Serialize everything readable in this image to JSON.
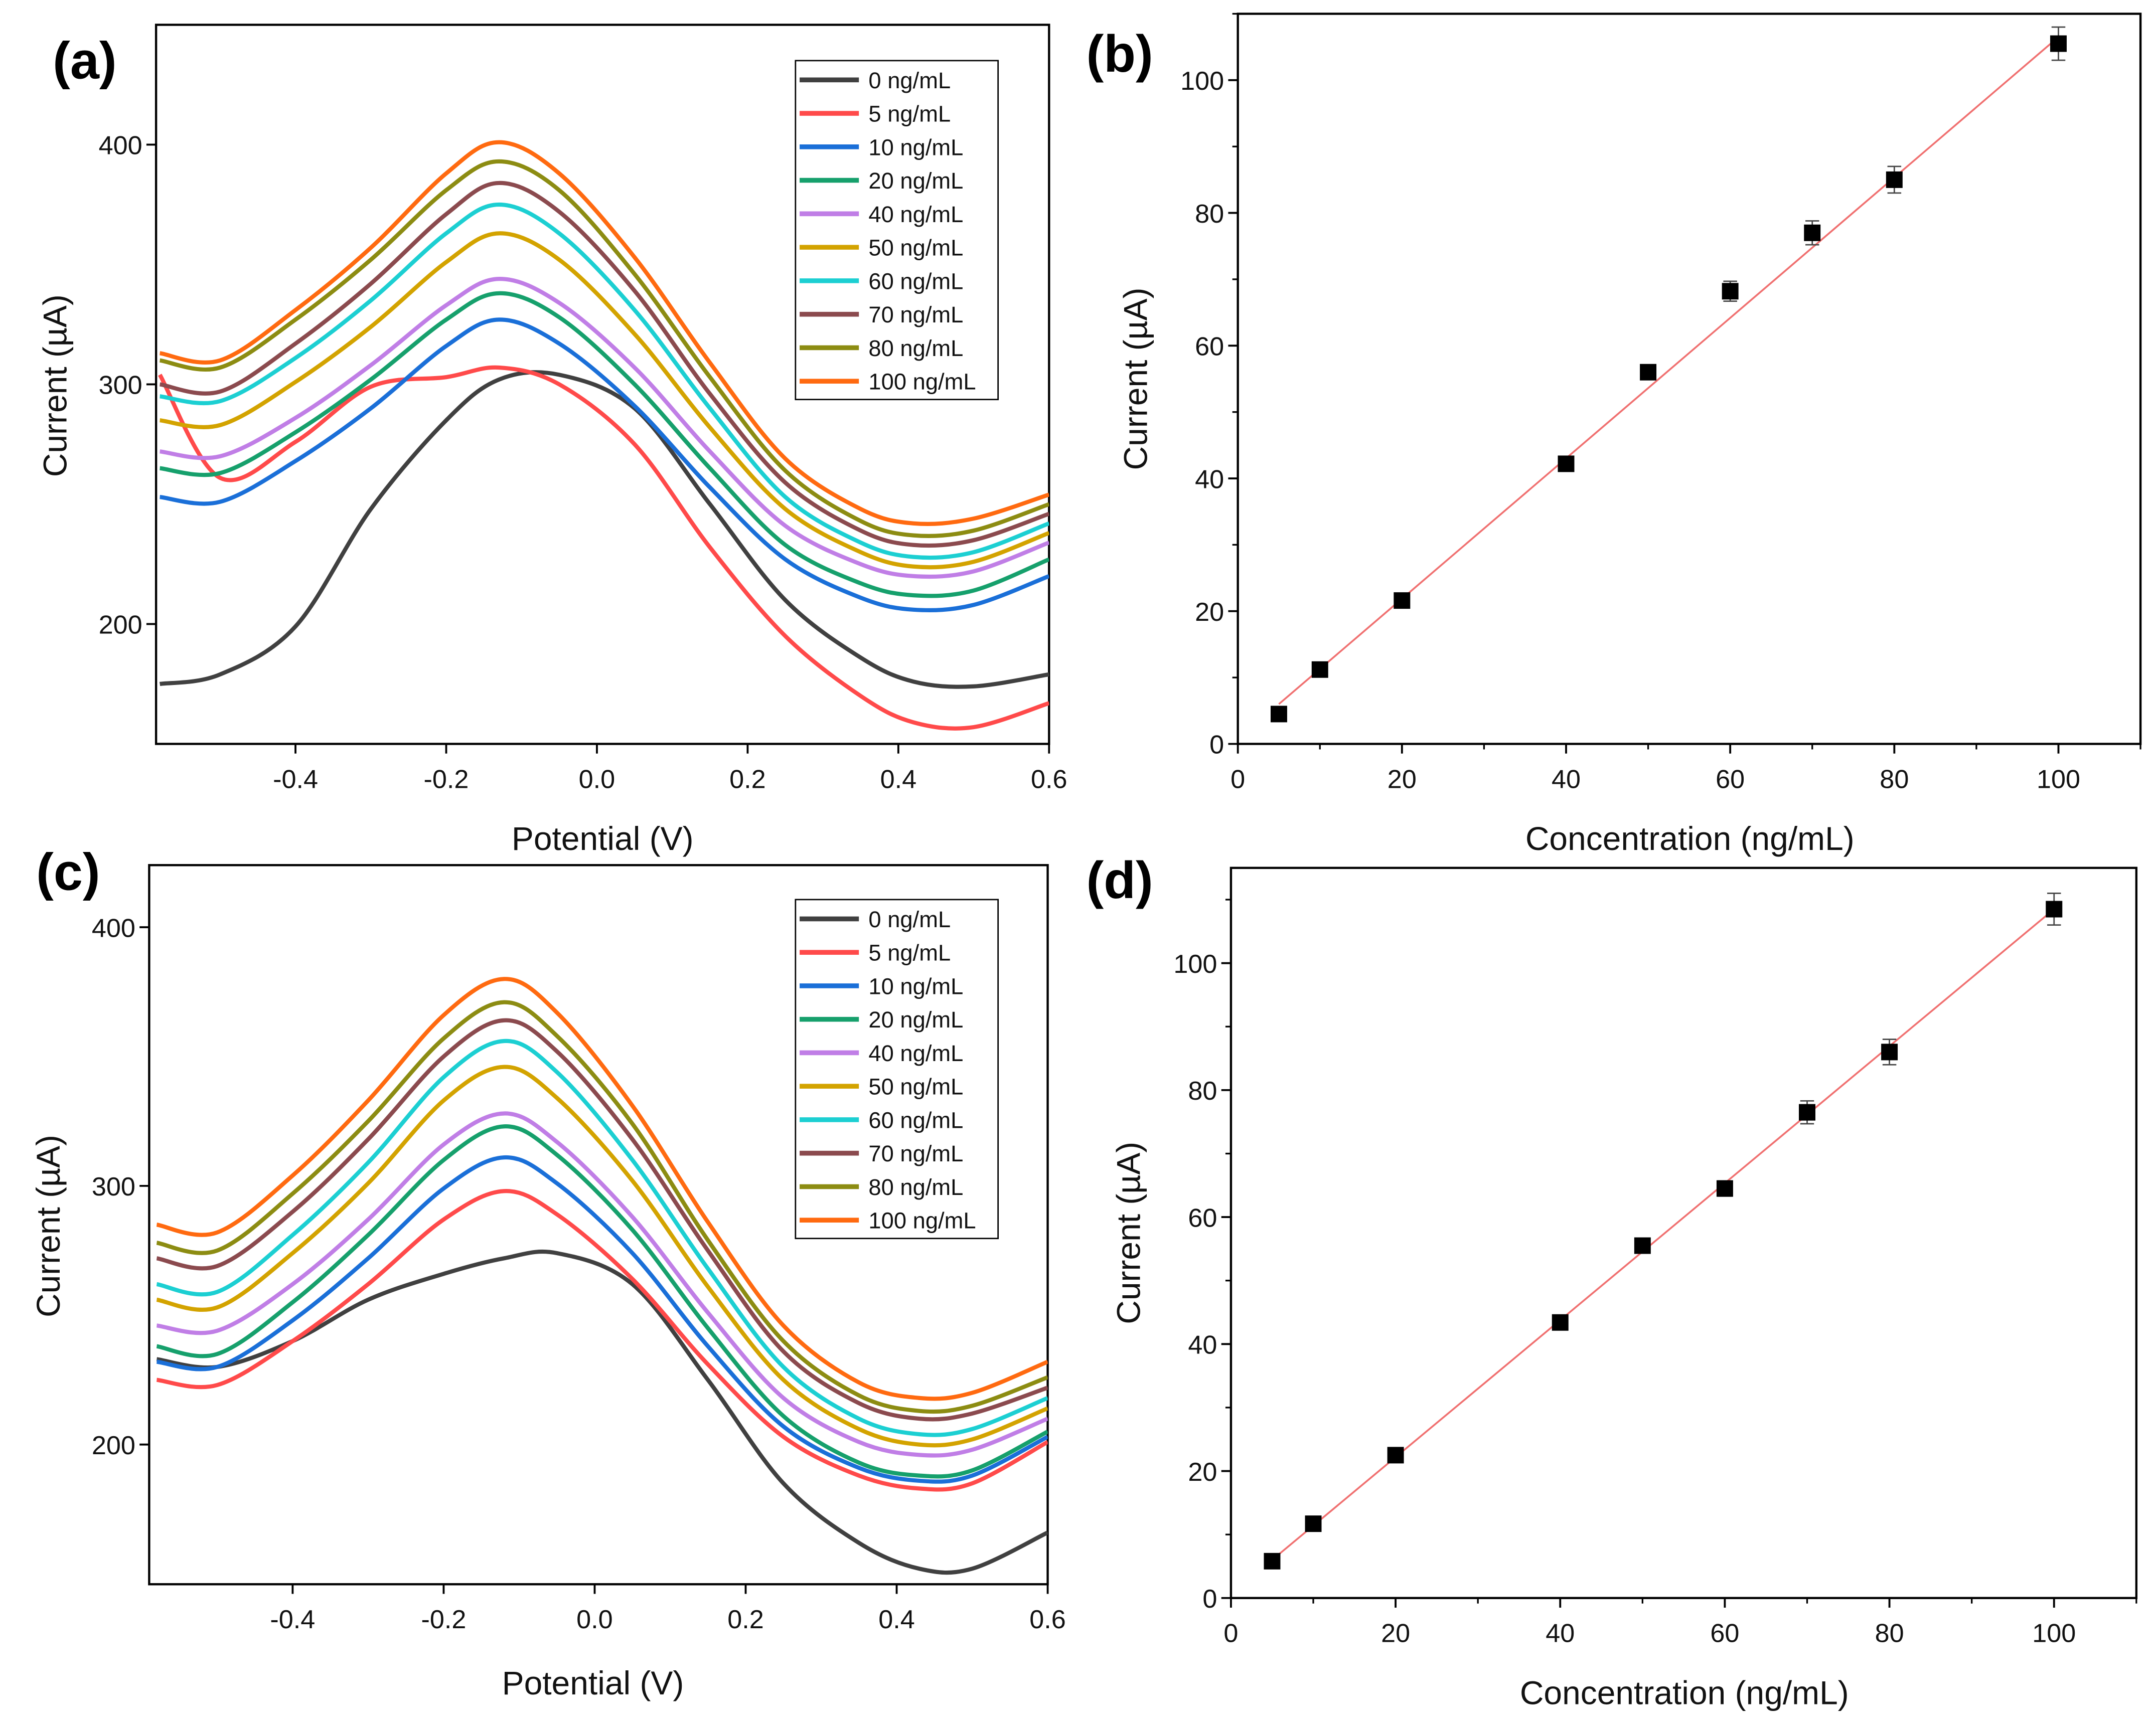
{
  "chart_data": [
    {
      "panel": "(a)",
      "type": "line",
      "xlabel": "Potential (V)",
      "ylabel": "Current (µA)",
      "xlim": [
        -0.585,
        0.6
      ],
      "ylim": [
        150,
        450
      ],
      "xticks": [
        -0.4,
        -0.2,
        0.0,
        0.2,
        0.4,
        0.6
      ],
      "xtick_labels": [
        "-0.4",
        "-0.2",
        "0.0",
        "0.2",
        "0.4",
        "0.6"
      ],
      "yticks": [
        200,
        300,
        400
      ],
      "ytick_labels": [
        "200",
        "300",
        "400"
      ],
      "legend_position": "top-right",
      "x": [
        -0.58,
        -0.5,
        -0.4,
        -0.3,
        -0.2,
        -0.13,
        -0.05,
        0.05,
        0.15,
        0.25,
        0.35,
        0.42,
        0.5,
        0.6
      ],
      "series": [
        {
          "name": "0 ng/mL",
          "color": "#404040",
          "values": [
            175,
            179,
            199,
            248,
            285,
            302,
            304,
            290,
            250,
            210,
            186,
            176,
            174,
            179
          ]
        },
        {
          "name": "5 ng/mL",
          "color": "#ff4a4a",
          "values": [
            304,
            261,
            276,
            299,
            303,
            307,
            300,
            275,
            232,
            195,
            170,
            159,
            157,
            167
          ]
        },
        {
          "name": "10 ng/mL",
          "color": "#1a6fd8",
          "values": [
            253,
            251,
            268,
            290,
            316,
            327,
            317,
            291,
            257,
            227,
            211,
            206,
            208,
            220
          ]
        },
        {
          "name": "20 ng/mL",
          "color": "#16a06c",
          "values": [
            265,
            263,
            280,
            302,
            327,
            338,
            328,
            300,
            265,
            233,
            217,
            212,
            214,
            227
          ]
        },
        {
          "name": "40 ng/mL",
          "color": "#c07ee6",
          "values": [
            272,
            270,
            286,
            308,
            333,
            344,
            334,
            307,
            272,
            241,
            225,
            220,
            222,
            234
          ]
        },
        {
          "name": "50 ng/mL",
          "color": "#d3a300",
          "values": [
            285,
            283,
            301,
            324,
            351,
            363,
            352,
            321,
            282,
            248,
            230,
            224,
            226,
            238
          ]
        },
        {
          "name": "60 ng/mL",
          "color": "#1ccfd2",
          "values": [
            295,
            293,
            311,
            335,
            363,
            375,
            363,
            331,
            290,
            253,
            234,
            228,
            230,
            242
          ]
        },
        {
          "name": "70 ng/mL",
          "color": "#8b4a4e",
          "values": [
            300,
            297,
            317,
            342,
            371,
            384,
            372,
            339,
            296,
            259,
            239,
            233,
            235,
            246
          ]
        },
        {
          "name": "80 ng/mL",
          "color": "#8c8c12",
          "values": [
            310,
            307,
            327,
            352,
            381,
            393,
            381,
            346,
            303,
            264,
            243,
            237,
            239,
            250
          ]
        },
        {
          "name": "100 ng/mL",
          "color": "#ff6a10",
          "values": [
            313,
            310,
            331,
            357,
            388,
            401,
            388,
            353,
            309,
            269,
            248,
            242,
            244,
            254
          ]
        }
      ]
    },
    {
      "panel": "(b)",
      "type": "scatter",
      "xlabel": "Concentration (ng/mL)",
      "ylabel": "Current (µA)",
      "xlim": [
        0,
        110
      ],
      "ylim": [
        0,
        110
      ],
      "xticks": [
        0,
        20,
        40,
        60,
        80,
        100
      ],
      "xtick_labels": [
        "0",
        "20",
        "40",
        "60",
        "80",
        "100"
      ],
      "yticks": [
        0,
        20,
        40,
        60,
        80,
        100
      ],
      "ytick_labels": [
        "0",
        "20",
        "40",
        "60",
        "80",
        "100"
      ],
      "x": [
        5,
        10,
        20,
        40,
        50,
        60,
        70,
        80,
        100
      ],
      "y": [
        4.5,
        11.2,
        21.6,
        42.2,
        56.0,
        68.2,
        77.0,
        85.0,
        105.5
      ],
      "error": [
        0.5,
        0.5,
        0.6,
        0.5,
        1.0,
        1.5,
        1.8,
        2.0,
        2.5
      ],
      "fit": {
        "x": [
          5,
          100
        ],
        "y": [
          6.0,
          106.5
        ],
        "color": "#f07070"
      }
    },
    {
      "panel": "(c)",
      "type": "line",
      "xlabel": "Potential (V)",
      "ylabel": "Current (µA)",
      "xlim": [
        -0.59,
        0.6
      ],
      "ylim": [
        146,
        424
      ],
      "xticks": [
        -0.4,
        -0.2,
        0.0,
        0.2,
        0.4,
        0.6
      ],
      "xtick_labels": [
        "-0.4",
        "-0.2",
        "0.0",
        "0.2",
        "0.4",
        "0.6"
      ],
      "yticks": [
        200,
        300,
        400
      ],
      "ytick_labels": [
        "200",
        "300",
        "400"
      ],
      "legend_position": "top-right",
      "x": [
        -0.58,
        -0.5,
        -0.4,
        -0.3,
        -0.2,
        -0.12,
        -0.05,
        0.05,
        0.15,
        0.25,
        0.35,
        0.43,
        0.5,
        0.6
      ],
      "series": [
        {
          "name": "0 ng/mL",
          "color": "#404040",
          "values": [
            233,
            230,
            240,
            256,
            266,
            272,
            274,
            262,
            225,
            185,
            162,
            152,
            152,
            166
          ]
        },
        {
          "name": "5 ng/mL",
          "color": "#ff4a4a",
          "values": [
            225,
            223,
            240,
            262,
            287,
            298,
            289,
            264,
            231,
            203,
            188,
            183,
            185,
            201
          ]
        },
        {
          "name": "10 ng/mL",
          "color": "#1a6fd8",
          "values": [
            232,
            230,
            248,
            272,
            299,
            311,
            301,
            274,
            238,
            207,
            191,
            186,
            188,
            203
          ]
        },
        {
          "name": "20 ng/mL",
          "color": "#16a06c",
          "values": [
            238,
            235,
            255,
            281,
            310,
            323,
            312,
            283,
            245,
            211,
            193,
            188,
            190,
            205
          ]
        },
        {
          "name": "40 ng/mL",
          "color": "#c07ee6",
          "values": [
            246,
            244,
            262,
            287,
            316,
            328,
            317,
            288,
            251,
            218,
            201,
            196,
            198,
            210
          ]
        },
        {
          "name": "50 ng/mL",
          "color": "#d3a300",
          "values": [
            256,
            253,
            274,
            301,
            333,
            346,
            334,
            302,
            261,
            225,
            206,
            200,
            202,
            214
          ]
        },
        {
          "name": "60 ng/mL",
          "color": "#1ccfd2",
          "values": [
            262,
            259,
            281,
            309,
            342,
            356,
            344,
            310,
            268,
            230,
            210,
            204,
            206,
            218
          ]
        },
        {
          "name": "70 ng/mL",
          "color": "#8b4a4e",
          "values": [
            272,
            269,
            290,
            318,
            350,
            364,
            352,
            318,
            275,
            236,
            216,
            210,
            212,
            222
          ]
        },
        {
          "name": "80 ng/mL",
          "color": "#8c8c12",
          "values": [
            278,
            275,
            297,
            325,
            357,
            371,
            358,
            324,
            279,
            240,
            219,
            213,
            215,
            226
          ]
        },
        {
          "name": "100 ng/mL",
          "color": "#ff6a10",
          "values": [
            285,
            282,
            304,
            333,
            366,
            380,
            367,
            331,
            286,
            246,
            224,
            218,
            220,
            232
          ]
        }
      ]
    },
    {
      "panel": "(d)",
      "type": "scatter",
      "xlabel": "Concentration (ng/mL)",
      "ylabel": "Current (µA)",
      "xlim": [
        0,
        110
      ],
      "ylim": [
        0,
        115
      ],
      "xticks": [
        0,
        20,
        40,
        60,
        80,
        100
      ],
      "xtick_labels": [
        "0",
        "20",
        "40",
        "60",
        "80",
        "100"
      ],
      "yticks": [
        0,
        20,
        40,
        60,
        80,
        100
      ],
      "ytick_labels": [
        "0",
        "20",
        "40",
        "60",
        "80",
        "100"
      ],
      "x": [
        5,
        10,
        20,
        40,
        50,
        60,
        70,
        80,
        100
      ],
      "y": [
        5.8,
        11.7,
        22.5,
        43.4,
        55.5,
        64.5,
        76.5,
        86.0,
        108.5
      ],
      "error": [
        0.5,
        0.6,
        0.6,
        0.5,
        0.8,
        1.2,
        1.8,
        2.0,
        2.5
      ],
      "fit": {
        "x": [
          5,
          100
        ],
        "y": [
          6.0,
          108.5
        ],
        "color": "#f07070"
      }
    }
  ]
}
